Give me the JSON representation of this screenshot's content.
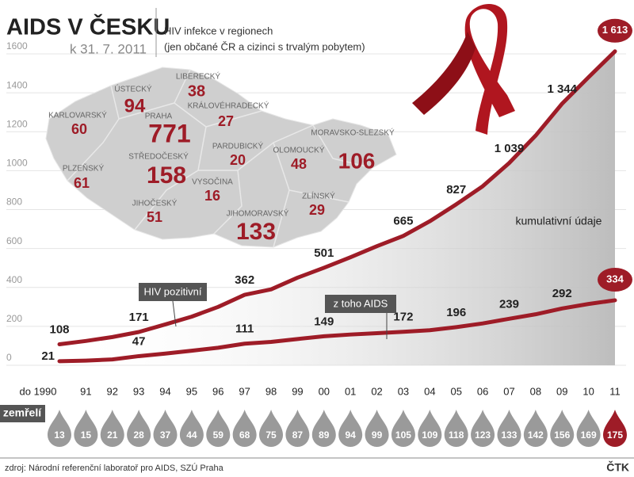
{
  "chart_data": {
    "type": "line",
    "title": "AIDS V ČESKU",
    "subtitle": "k 31. 7. 2011",
    "map_title": "HIV infekce v regionech",
    "map_subtitle": "(jen občané ČR a cizinci s trvalým pobytem)",
    "annotation": "kumulativní údaje",
    "categories": [
      "do 1990",
      "91",
      "92",
      "93",
      "94",
      "95",
      "96",
      "97",
      "98",
      "99",
      "00",
      "01",
      "02",
      "03",
      "04",
      "05",
      "06",
      "07",
      "08",
      "09",
      "10",
      "11"
    ],
    "series": [
      {
        "name": "HIV pozitivní",
        "color": "#9e1c27",
        "values": [
          108,
          125,
          145,
          171,
          210,
          250,
          300,
          362,
          390,
          450,
          501,
          555,
          612,
          665,
          740,
          827,
          920,
          1039,
          1180,
          1344,
          1480,
          1613
        ],
        "value_labels": [
          "108",
          null,
          null,
          "171",
          null,
          null,
          null,
          "362",
          null,
          null,
          "501",
          null,
          null,
          "665",
          null,
          "827",
          null,
          "1 039",
          null,
          "1 344",
          null,
          "1 613"
        ]
      },
      {
        "name": "z toho AIDS",
        "color": "#9e1c27",
        "values": [
          21,
          24,
          30,
          47,
          60,
          75,
          90,
          111,
          120,
          135,
          149,
          158,
          165,
          172,
          180,
          196,
          215,
          239,
          262,
          292,
          315,
          334
        ],
        "value_labels": [
          "21",
          null,
          null,
          "47",
          null,
          null,
          null,
          "111",
          null,
          null,
          "149",
          null,
          null,
          "172",
          null,
          "196",
          null,
          "239",
          null,
          "292",
          null,
          "334"
        ]
      }
    ],
    "ylim": [
      0,
      1600
    ],
    "yticks": [
      0,
      200,
      400,
      600,
      800,
      1000,
      1200,
      1400,
      1600
    ],
    "grid": true,
    "deaths_label": "zemřelí",
    "deaths": [
      13,
      15,
      21,
      28,
      37,
      44,
      59,
      68,
      75,
      87,
      89,
      94,
      99,
      105,
      109,
      118,
      123,
      133,
      142,
      156,
      169,
      175
    ],
    "regions": [
      {
        "name": "LIBERECKÝ",
        "value": 38
      },
      {
        "name": "ÚSTECKÝ",
        "value": 94
      },
      {
        "name": "KARLOVARSKÝ",
        "value": 60
      },
      {
        "name": "PRAHA",
        "value": 771
      },
      {
        "name": "KRÁLOVÉHRADECKÝ",
        "value": 27
      },
      {
        "name": "PARDUBICKÝ",
        "value": 20
      },
      {
        "name": "STŘEDOČESKÝ",
        "value": 158
      },
      {
        "name": "PLZEŇSKÝ",
        "value": 61
      },
      {
        "name": "VYSOČINA",
        "value": 16
      },
      {
        "name": "OLOMOUCKÝ",
        "value": 48
      },
      {
        "name": "MORAVSKO-SLEZSKÝ",
        "value": 106
      },
      {
        "name": "ZLÍNSKÝ",
        "value": 29
      },
      {
        "name": "JIHOČESKÝ",
        "value": 51
      },
      {
        "name": "JIHOMORAVSKÝ",
        "value": 133
      }
    ],
    "source": "zdroj: Národní referenční laboratoř pro AIDS, SZÚ Praha",
    "credit": "ČTK"
  }
}
